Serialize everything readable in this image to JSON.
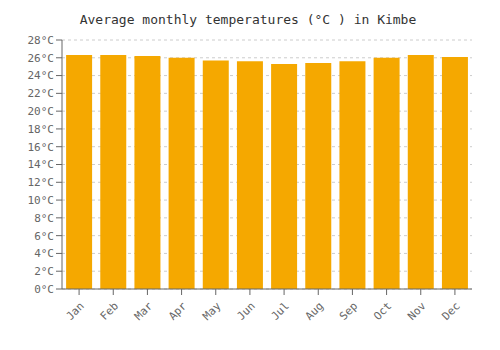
{
  "chart_data": {
    "type": "bar",
    "title": "Average monthly temperatures (°C ) in Kimbe",
    "categories": [
      "Jan",
      "Feb",
      "Mar",
      "Apr",
      "May",
      "Jun",
      "Jul",
      "Aug",
      "Sep",
      "Oct",
      "Nov",
      "Dec"
    ],
    "values": [
      26.3,
      26.3,
      26.2,
      26.0,
      25.7,
      25.6,
      25.3,
      25.4,
      25.6,
      26.0,
      26.3,
      26.1
    ],
    "color": "#F5A800",
    "ylim": [
      0,
      28
    ],
    "yticks": [
      {
        "value": 0,
        "label": "0°C"
      },
      {
        "value": 2,
        "label": "2°C"
      },
      {
        "value": 4,
        "label": "4°C"
      },
      {
        "value": 6,
        "label": "6°C"
      },
      {
        "value": 8,
        "label": "8°C"
      },
      {
        "value": 10,
        "label": "10°C"
      },
      {
        "value": 12,
        "label": "12°C"
      },
      {
        "value": 14,
        "label": "14°C"
      },
      {
        "value": 16,
        "label": "16°C"
      },
      {
        "value": 18,
        "label": "18°C"
      },
      {
        "value": 20,
        "label": "20°C"
      },
      {
        "value": 22,
        "label": "22°C"
      },
      {
        "value": 24,
        "label": "24°C"
      },
      {
        "value": 26,
        "label": "26°C"
      },
      {
        "value": 28,
        "label": "28°C"
      }
    ],
    "grid": true
  }
}
